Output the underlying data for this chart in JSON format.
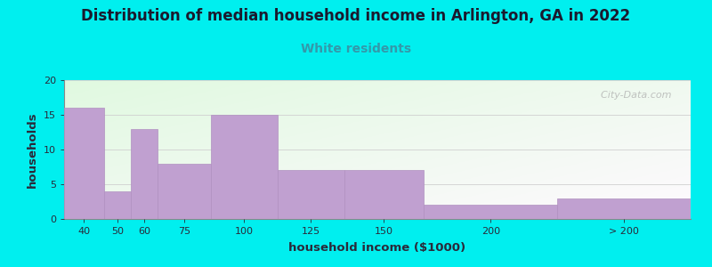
{
  "title": "Distribution of median household income in Arlington, GA in 2022",
  "subtitle": "White residents",
  "xlabel": "household income ($1000)",
  "ylabel": "households",
  "bar_labels": [
    "40",
    "50",
    "60",
    "75",
    "100",
    "125",
    "150",
    "200",
    "> 200"
  ],
  "bar_heights": [
    16,
    4,
    13,
    8,
    15,
    7,
    7,
    2,
    3
  ],
  "bar_color": "#c0a0d0",
  "bar_edge_color": "#b090c0",
  "background_color": "#00efef",
  "subtitle_color": "#3399aa",
  "title_color": "#1a1a2e",
  "axis_label_color": "#2a2a3a",
  "tick_color": "#2a2a3a",
  "ylim": [
    0,
    20
  ],
  "yticks": [
    0,
    5,
    10,
    15,
    20
  ],
  "watermark": "  City-Data.com",
  "bar_left_edges": [
    30,
    45,
    55,
    65,
    85,
    110,
    135,
    165,
    215
  ],
  "bar_right_edges": [
    45,
    55,
    65,
    85,
    110,
    135,
    165,
    215,
    265
  ],
  "tick_positions": [
    37.5,
    50,
    60,
    75,
    97.5,
    122.5,
    150,
    190,
    240
  ],
  "xlim": [
    30,
    265
  ]
}
